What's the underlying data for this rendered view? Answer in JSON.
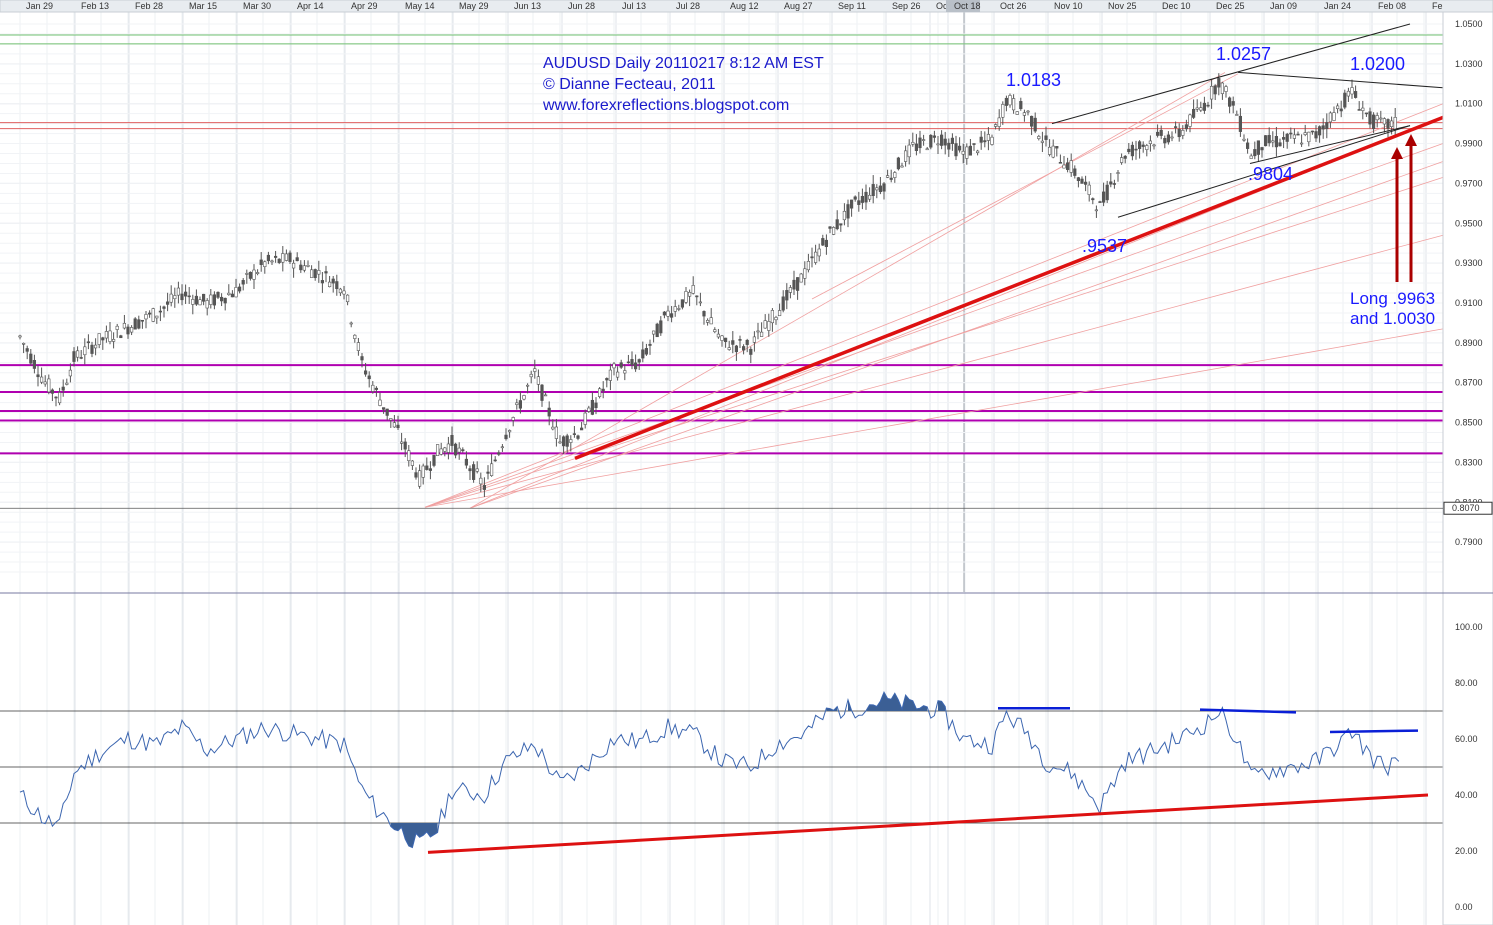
{
  "chart_data": [
    {
      "type": "candlestick",
      "title": "AUDUSD Daily 20110217 8:12 AM EST",
      "subtitle_lines": [
        "© Dianne Fecteau, 2011",
        "www.forexreflections.blogspot.com"
      ],
      "x_ticks": [
        "Jan 29",
        "Feb 13",
        "Feb 28",
        "Mar 15",
        "Mar 30",
        "Apr 14",
        "Apr 29",
        "May 14",
        "May 29",
        "Jun 13",
        "Jun 28",
        "Jul 13",
        "Jul 28",
        "Aug 12",
        "Aug 27",
        "Sep 11",
        "Sep 26",
        "Oc",
        "Oct 18",
        "Oct 26",
        "Nov 10",
        "Nov 25",
        "Dec 10",
        "Dec 25",
        "Jan 09",
        "Jan 24",
        "Feb 08",
        "Fe"
      ],
      "y_ticks": [
        "1.0500",
        "1.0300",
        "1.0100",
        "0.9900",
        "0.9700",
        "0.9500",
        "0.9300",
        "0.9100",
        "0.8900",
        "0.8700",
        "0.8500",
        "0.8300",
        "0.8100",
        "0.7900"
      ],
      "ylim": [
        0.775,
        1.052
      ],
      "last_price_label": "0.8070",
      "annotations": [
        {
          "text": "1.0183",
          "x": "Oct 30",
          "y": 1.0183
        },
        {
          "text": "1.0257",
          "x": "Dec 28",
          "y": 1.0257
        },
        {
          "text": "1.0200",
          "x": "Feb 03",
          "y": 1.02
        },
        {
          "text": ".9537",
          "x": "Nov 25",
          "y": 0.9537
        },
        {
          "text": ".9804",
          "x": "Jan 06",
          "y": 0.9804
        },
        {
          "text": "Long .9963",
          "x": "Feb 10",
          "y": 0.9963
        },
        {
          "text": "and 1.0030",
          "x": "Feb 10",
          "y": 1.003
        }
      ],
      "horizontal_levels": [
        {
          "price": 1.0005,
          "color": "#e06060"
        },
        {
          "price": 0.9975,
          "color": "#e06060"
        },
        {
          "price": 1.0445,
          "color": "#70c070"
        },
        {
          "price": 1.04,
          "color": "#70c070"
        },
        {
          "price": 0.8788,
          "color": "#b000b0"
        },
        {
          "price": 0.8653,
          "color": "#b000b0"
        },
        {
          "price": 0.8558,
          "color": "#b000b0"
        },
        {
          "price": 0.851,
          "color": "#b000b0"
        },
        {
          "price": 0.8345,
          "color": "#b000b0"
        }
      ],
      "series": [
        {
          "values": [
            {
              "x": "Jan 29",
              "y": 0.893
            },
            {
              "x": "Feb 05",
              "y": 0.87
            },
            {
              "x": "Feb 09",
              "y": 0.862
            },
            {
              "x": "Feb 13",
              "y": 0.882
            },
            {
              "x": "Feb 20",
              "y": 0.891
            },
            {
              "x": "Feb 28",
              "y": 0.898
            },
            {
              "x": "Mar 08",
              "y": 0.905
            },
            {
              "x": "Mar 15",
              "y": 0.915
            },
            {
              "x": "Mar 22",
              "y": 0.91
            },
            {
              "x": "Mar 30",
              "y": 0.916
            },
            {
              "x": "Apr 07",
              "y": 0.93
            },
            {
              "x": "Apr 14",
              "y": 0.932
            },
            {
              "x": "Apr 22",
              "y": 0.925
            },
            {
              "x": "Apr 29",
              "y": 0.918
            },
            {
              "x": "May 04",
              "y": 0.88
            },
            {
              "x": "May 08",
              "y": 0.865
            },
            {
              "x": "May 14",
              "y": 0.845
            },
            {
              "x": "May 20",
              "y": 0.822
            },
            {
              "x": "May 25",
              "y": 0.835
            },
            {
              "x": "May 29",
              "y": 0.84
            },
            {
              "x": "Jun 07",
              "y": 0.818
            },
            {
              "x": "Jun 13",
              "y": 0.845
            },
            {
              "x": "Jun 21",
              "y": 0.875
            },
            {
              "x": "Jun 28",
              "y": 0.84
            },
            {
              "x": "Jul 03",
              "y": 0.845
            },
            {
              "x": "Jul 13",
              "y": 0.876
            },
            {
              "x": "Jul 20",
              "y": 0.88
            },
            {
              "x": "Jul 28",
              "y": 0.905
            },
            {
              "x": "Aug 04",
              "y": 0.915
            },
            {
              "x": "Aug 12",
              "y": 0.89
            },
            {
              "x": "Aug 20",
              "y": 0.888
            },
            {
              "x": "Aug 27",
              "y": 0.905
            },
            {
              "x": "Sep 04",
              "y": 0.925
            },
            {
              "x": "Sep 11",
              "y": 0.945
            },
            {
              "x": "Sep 18",
              "y": 0.96
            },
            {
              "x": "Sep 26",
              "y": 0.97
            },
            {
              "x": "Oct 04",
              "y": 0.988
            },
            {
              "x": "Oct 12",
              "y": 0.993
            },
            {
              "x": "Oct 18",
              "y": 0.985
            },
            {
              "x": "Oct 26",
              "y": 0.992
            },
            {
              "x": "Oct 30",
              "y": 1.012
            },
            {
              "x": "Nov 05",
              "y": 1.005
            },
            {
              "x": "Nov 10",
              "y": 0.99
            },
            {
              "x": "Nov 17",
              "y": 0.978
            },
            {
              "x": "Nov 25",
              "y": 0.958
            },
            {
              "x": "Dec 02",
              "y": 0.985
            },
            {
              "x": "Dec 10",
              "y": 0.992
            },
            {
              "x": "Dec 17",
              "y": 0.995
            },
            {
              "x": "Dec 25",
              "y": 1.012
            },
            {
              "x": "Dec 28",
              "y": 1.022
            },
            {
              "x": "Jan 02",
              "y": 1.005
            },
            {
              "x": "Jan 06",
              "y": 0.984
            },
            {
              "x": "Jan 09",
              "y": 0.99
            },
            {
              "x": "Jan 17",
              "y": 0.992
            },
            {
              "x": "Jan 24",
              "y": 0.994
            },
            {
              "x": "Feb 01",
              "y": 1.012
            },
            {
              "x": "Feb 03",
              "y": 1.016
            },
            {
              "x": "Feb 08",
              "y": 1.002
            },
            {
              "x": "Feb 12",
              "y": 0.999
            },
            {
              "x": "Feb 16",
              "y": 1.0
            }
          ]
        }
      ]
    },
    {
      "type": "line",
      "y_ticks": [
        "100.00",
        "80.00",
        "60.00",
        "40.00",
        "20.00",
        "0.00"
      ],
      "ylim": [
        0,
        100
      ],
      "reference_levels": [
        70,
        50,
        30
      ],
      "series": [
        {
          "values": [
            {
              "x": "Jan 29",
              "y": 40
            },
            {
              "x": "Feb 05",
              "y": 31
            },
            {
              "x": "Feb 09",
              "y": 29
            },
            {
              "x": "Feb 13",
              "y": 48
            },
            {
              "x": "Feb 20",
              "y": 55
            },
            {
              "x": "Feb 28",
              "y": 60
            },
            {
              "x": "Mar 08",
              "y": 58
            },
            {
              "x": "Mar 15",
              "y": 64
            },
            {
              "x": "Mar 22",
              "y": 56
            },
            {
              "x": "Mar 30",
              "y": 60
            },
            {
              "x": "Apr 07",
              "y": 64
            },
            {
              "x": "Apr 14",
              "y": 62
            },
            {
              "x": "Apr 22",
              "y": 60
            },
            {
              "x": "Apr 29",
              "y": 58
            },
            {
              "x": "May 04",
              "y": 42
            },
            {
              "x": "May 08",
              "y": 35
            },
            {
              "x": "May 14",
              "y": 28
            },
            {
              "x": "May 20",
              "y": 22
            },
            {
              "x": "May 25",
              "y": 28
            },
            {
              "x": "May 29",
              "y": 42
            },
            {
              "x": "Jun 07",
              "y": 40
            },
            {
              "x": "Jun 13",
              "y": 52
            },
            {
              "x": "Jun 21",
              "y": 58
            },
            {
              "x": "Jun 28",
              "y": 44
            },
            {
              "x": "Jul 03",
              "y": 48
            },
            {
              "x": "Jul 13",
              "y": 60
            },
            {
              "x": "Jul 20",
              "y": 59
            },
            {
              "x": "Jul 28",
              "y": 64
            },
            {
              "x": "Aug 04",
              "y": 62
            },
            {
              "x": "Aug 12",
              "y": 52
            },
            {
              "x": "Aug 20",
              "y": 50
            },
            {
              "x": "Aug 27",
              "y": 58
            },
            {
              "x": "Sep 04",
              "y": 62
            },
            {
              "x": "Sep 11",
              "y": 70
            },
            {
              "x": "Sep 18",
              "y": 71
            },
            {
              "x": "Sep 26",
              "y": 74
            },
            {
              "x": "Oct 04",
              "y": 72
            },
            {
              "x": "Oct 12",
              "y": 70
            },
            {
              "x": "Oct 18",
              "y": 60
            },
            {
              "x": "Oct 26",
              "y": 58
            },
            {
              "x": "Oct 30",
              "y": 69
            },
            {
              "x": "Nov 05",
              "y": 62
            },
            {
              "x": "Nov 10",
              "y": 52
            },
            {
              "x": "Nov 17",
              "y": 48
            },
            {
              "x": "Nov 25",
              "y": 36
            },
            {
              "x": "Dec 02",
              "y": 52
            },
            {
              "x": "Dec 10",
              "y": 56
            },
            {
              "x": "Dec 17",
              "y": 60
            },
            {
              "x": "Dec 25",
              "y": 66
            },
            {
              "x": "Dec 28",
              "y": 70
            },
            {
              "x": "Jan 02",
              "y": 60
            },
            {
              "x": "Jan 06",
              "y": 46
            },
            {
              "x": "Jan 09",
              "y": 48
            },
            {
              "x": "Jan 17",
              "y": 50
            },
            {
              "x": "Jan 24",
              "y": 52
            },
            {
              "x": "Feb 01",
              "y": 60
            },
            {
              "x": "Feb 03",
              "y": 63
            },
            {
              "x": "Feb 08",
              "y": 54
            },
            {
              "x": "Feb 12",
              "y": 50
            },
            {
              "x": "Feb 16",
              "y": 52
            }
          ]
        }
      ]
    }
  ]
}
